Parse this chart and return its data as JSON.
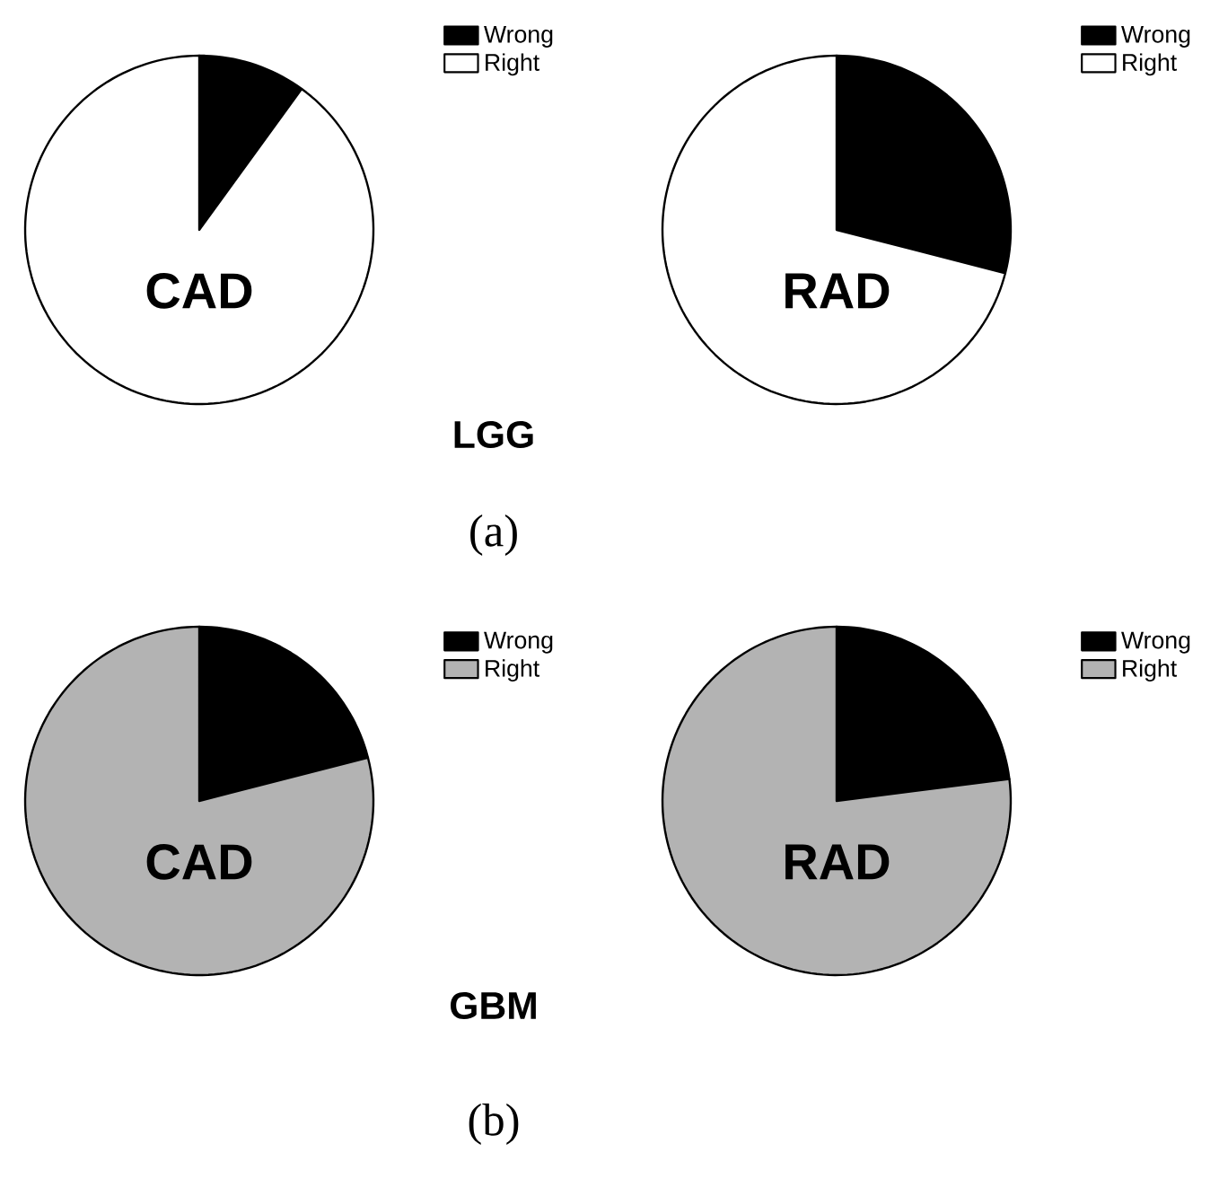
{
  "chart_data": [
    {
      "type": "pie",
      "title": "CAD",
      "categories": [
        "Wrong",
        "Right"
      ],
      "values": [
        10,
        90
      ],
      "colors": [
        "#000000",
        "#ffffff"
      ],
      "legend": "top right",
      "annotations": [
        "LGG",
        "(a)"
      ]
    },
    {
      "type": "pie",
      "title": "RAD",
      "categories": [
        "Wrong",
        "Right"
      ],
      "values": [
        29,
        71
      ],
      "colors": [
        "#000000",
        "#ffffff"
      ],
      "legend": "top right"
    },
    {
      "type": "pie",
      "title": "CAD",
      "categories": [
        "Wrong",
        "Right"
      ],
      "values": [
        21,
        79
      ],
      "colors": [
        "#000000",
        "#b3b3b3"
      ],
      "legend": "top right",
      "annotations": [
        "GBM",
        "(b)"
      ]
    },
    {
      "type": "pie",
      "title": "RAD",
      "categories": [
        "Wrong",
        "Right"
      ],
      "values": [
        23,
        77
      ],
      "colors": [
        "#000000",
        "#b3b3b3"
      ],
      "legend": "top right"
    }
  ]
}
